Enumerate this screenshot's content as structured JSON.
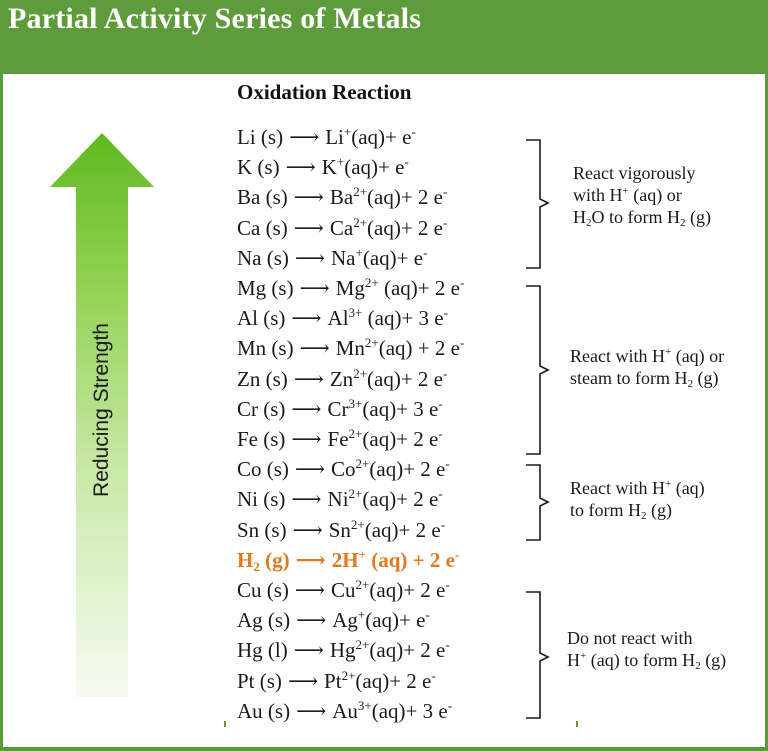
{
  "header": {
    "title": "Partial Activity Series of Metals"
  },
  "column_heading": "Oxidation Reaction",
  "arrow": {
    "label": "Reducing Strength"
  },
  "reactions": [
    {
      "reactant": "Li (s)",
      "product": "Li",
      "charge": "+",
      "state": "(aq)",
      "electrons": "+ e",
      "e_sup": "-"
    },
    {
      "reactant": "K (s)",
      "product": "K",
      "charge": "+",
      "state": "(aq)",
      "electrons": "+ e",
      "e_sup": "-"
    },
    {
      "reactant": "Ba (s)",
      "product": "Ba",
      "charge": "2+",
      "state": "(aq)",
      "electrons": "+ 2 e",
      "e_sup": "-"
    },
    {
      "reactant": "Ca (s)",
      "product": "Ca",
      "charge": "2+",
      "state": "(aq)",
      "electrons": "+ 2 e",
      "e_sup": "-"
    },
    {
      "reactant": "Na (s)",
      "product": "Na",
      "charge": "+",
      "state": "(aq)",
      "electrons": "+ e",
      "e_sup": "-"
    },
    {
      "reactant": "Mg (s)",
      "product": "Mg",
      "charge": "2+",
      "state": " (aq)",
      "electrons": "+ 2 e",
      "e_sup": "-"
    },
    {
      "reactant": "Al (s)",
      "product": "Al",
      "charge": "3+",
      "state": " (aq)",
      "electrons": "+ 3 e",
      "e_sup": "-"
    },
    {
      "reactant": "Mn (s)",
      "product": "Mn",
      "charge": "2+",
      "state": "(aq)",
      "electrons": " + 2 e",
      "e_sup": "-"
    },
    {
      "reactant": "Zn (s)",
      "product": "Zn",
      "charge": "2+",
      "state": "(aq)",
      "electrons": "+ 2 e",
      "e_sup": "-"
    },
    {
      "reactant": "Cr (s)",
      "product": "Cr",
      "charge": "3+",
      "state": "(aq)",
      "electrons": "+ 3 e",
      "e_sup": "-"
    },
    {
      "reactant": "Fe (s)",
      "product": "Fe",
      "charge": "2+",
      "state": "(aq)",
      "electrons": "+ 2 e",
      "e_sup": "-"
    },
    {
      "reactant": "Co (s)",
      "product": "Co",
      "charge": "2+",
      "state": "(aq)",
      "electrons": "+ 2 e",
      "e_sup": "-"
    },
    {
      "reactant": "Ni (s)",
      "product": "Ni",
      "charge": "2+",
      "state": "(aq)",
      "electrons": "+ 2 e",
      "e_sup": "-"
    },
    {
      "reactant": "Sn (s)",
      "product": "Sn",
      "charge": "2+",
      "state": "(aq)",
      "electrons": "+ 2 e",
      "e_sup": "-"
    },
    {
      "reactant_base": "H",
      "reactant_sub": "2",
      "reactant_state": " (g)",
      "product": "2H",
      "charge": "+",
      "state": " (aq)",
      "electrons": " + 2 e",
      "e_sup": "-"
    },
    {
      "reactant": "Cu (s)",
      "product": "Cu",
      "charge": "2+",
      "state": "(aq)",
      "electrons": "+ 2 e",
      "e_sup": "-"
    },
    {
      "reactant": "Ag (s)",
      "product": "Ag",
      "charge": "+",
      "state": "(aq)",
      "electrons": "+ e",
      "e_sup": "-"
    },
    {
      "reactant": "Hg (l)",
      "product": "Hg",
      "charge": "2+",
      "state": "(aq)",
      "electrons": "+ 2 e",
      "e_sup": "-"
    },
    {
      "reactant": "Pt (s)",
      "product": "Pt",
      "charge": "2+",
      "state": "(aq)",
      "electrons": "+ 2 e",
      "e_sup": "-"
    },
    {
      "reactant": "Au (s)",
      "product": "Au",
      "charge": "3+",
      "state": "(aq)",
      "electrons": "+ 3 e",
      "e_sup": "-"
    }
  ],
  "arrow_symbol": "⟶",
  "groups": [
    {
      "lines": [
        [
          {
            "t": "React vigorously"
          }
        ],
        [
          {
            "t": "with H"
          },
          {
            "sup": "+"
          },
          {
            "t": " (aq) or"
          }
        ],
        [
          {
            "t": "H"
          },
          {
            "sub": "2"
          },
          {
            "t": "O to form H"
          },
          {
            "sub": "2"
          },
          {
            "t": " (g)"
          }
        ]
      ]
    },
    {
      "lines": [
        [
          {
            "t": "React with H"
          },
          {
            "sup": "+"
          },
          {
            "t": " (aq) or"
          }
        ],
        [
          {
            "t": "steam to form H"
          },
          {
            "sub": "2"
          },
          {
            "t": " (g)"
          }
        ]
      ]
    },
    {
      "lines": [
        [
          {
            "t": "React with H"
          },
          {
            "sup": "+"
          },
          {
            "t": " (aq)"
          }
        ],
        [
          {
            "t": "to form H"
          },
          {
            "sub": "2"
          },
          {
            "t": " (g)"
          }
        ]
      ]
    },
    {
      "lines": [
        [
          {
            "t": "Do not react with"
          }
        ],
        [
          {
            "t": "H"
          },
          {
            "sup": "+"
          },
          {
            "t": " (aq) to form H"
          },
          {
            "sub": "2"
          },
          {
            "t": " (g)"
          }
        ]
      ]
    }
  ],
  "colors": {
    "header_green": "#5d9b3b",
    "arrow_green": "#6cc02a",
    "highlight_orange": "#e07a1f",
    "text": "#1a1a1a"
  }
}
